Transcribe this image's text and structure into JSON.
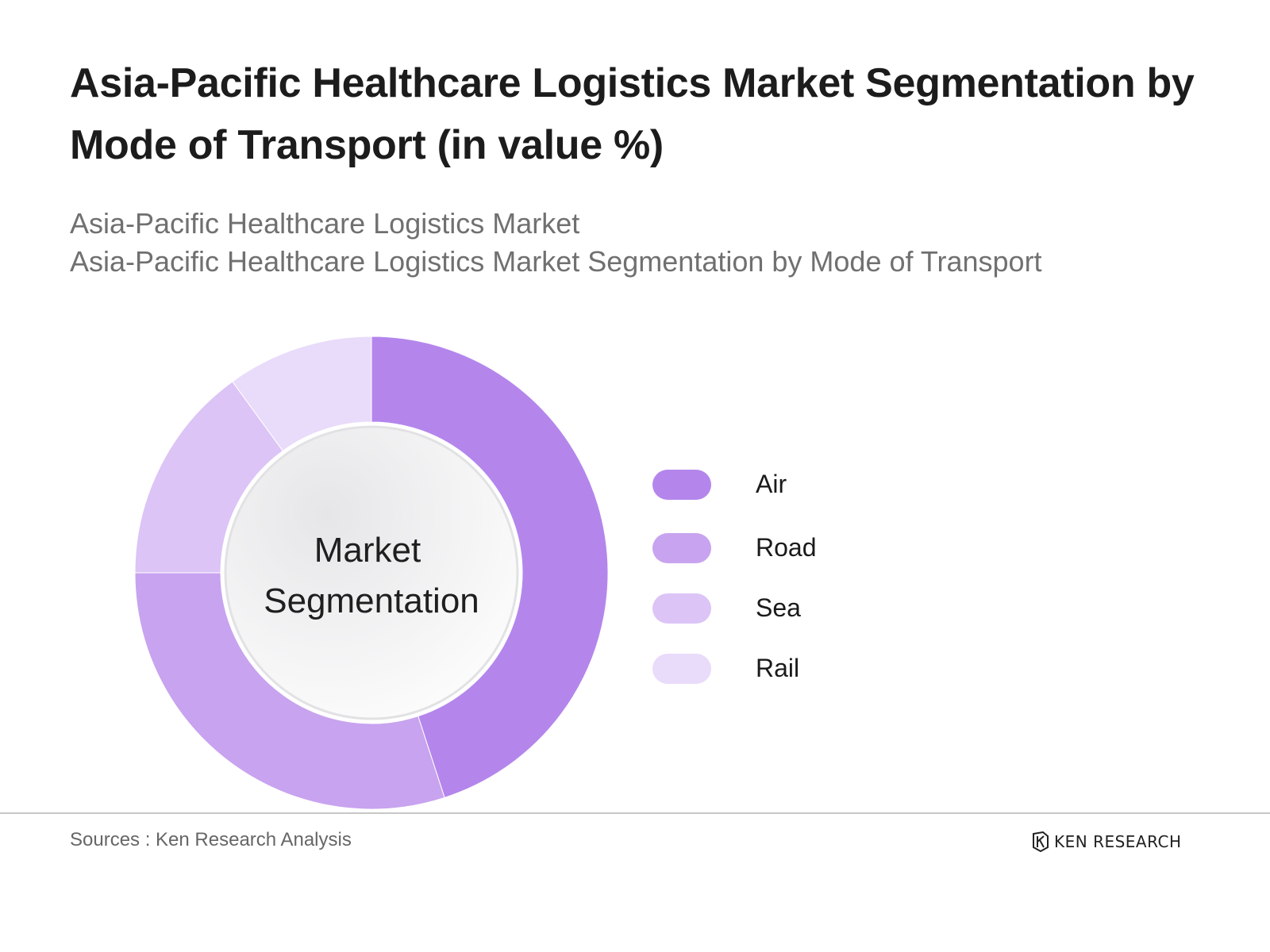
{
  "title": "Asia-Pacific Healthcare Logistics Market Segmentation by Mode of Transport (in value %)",
  "subtitle_lines": [
    "Asia-Pacific Healthcare Logistics Market",
    "Asia-Pacific Healthcare Logistics Market Segmentation by Mode of Transport"
  ],
  "center_label_lines": [
    "Market",
    "Segmentation"
  ],
  "source": "Sources : Ken Research Analysis",
  "logo_text": "KEN RESEARCH",
  "chart_data": {
    "type": "pie",
    "donut": true,
    "categories": [
      "Air",
      "Road",
      "Sea",
      "Rail"
    ],
    "values": [
      45,
      30,
      15,
      10
    ],
    "colors": [
      "#b486ec",
      "#c8a3ef",
      "#dcc4f6",
      "#e9dbfa"
    ],
    "legend_position": "right"
  }
}
